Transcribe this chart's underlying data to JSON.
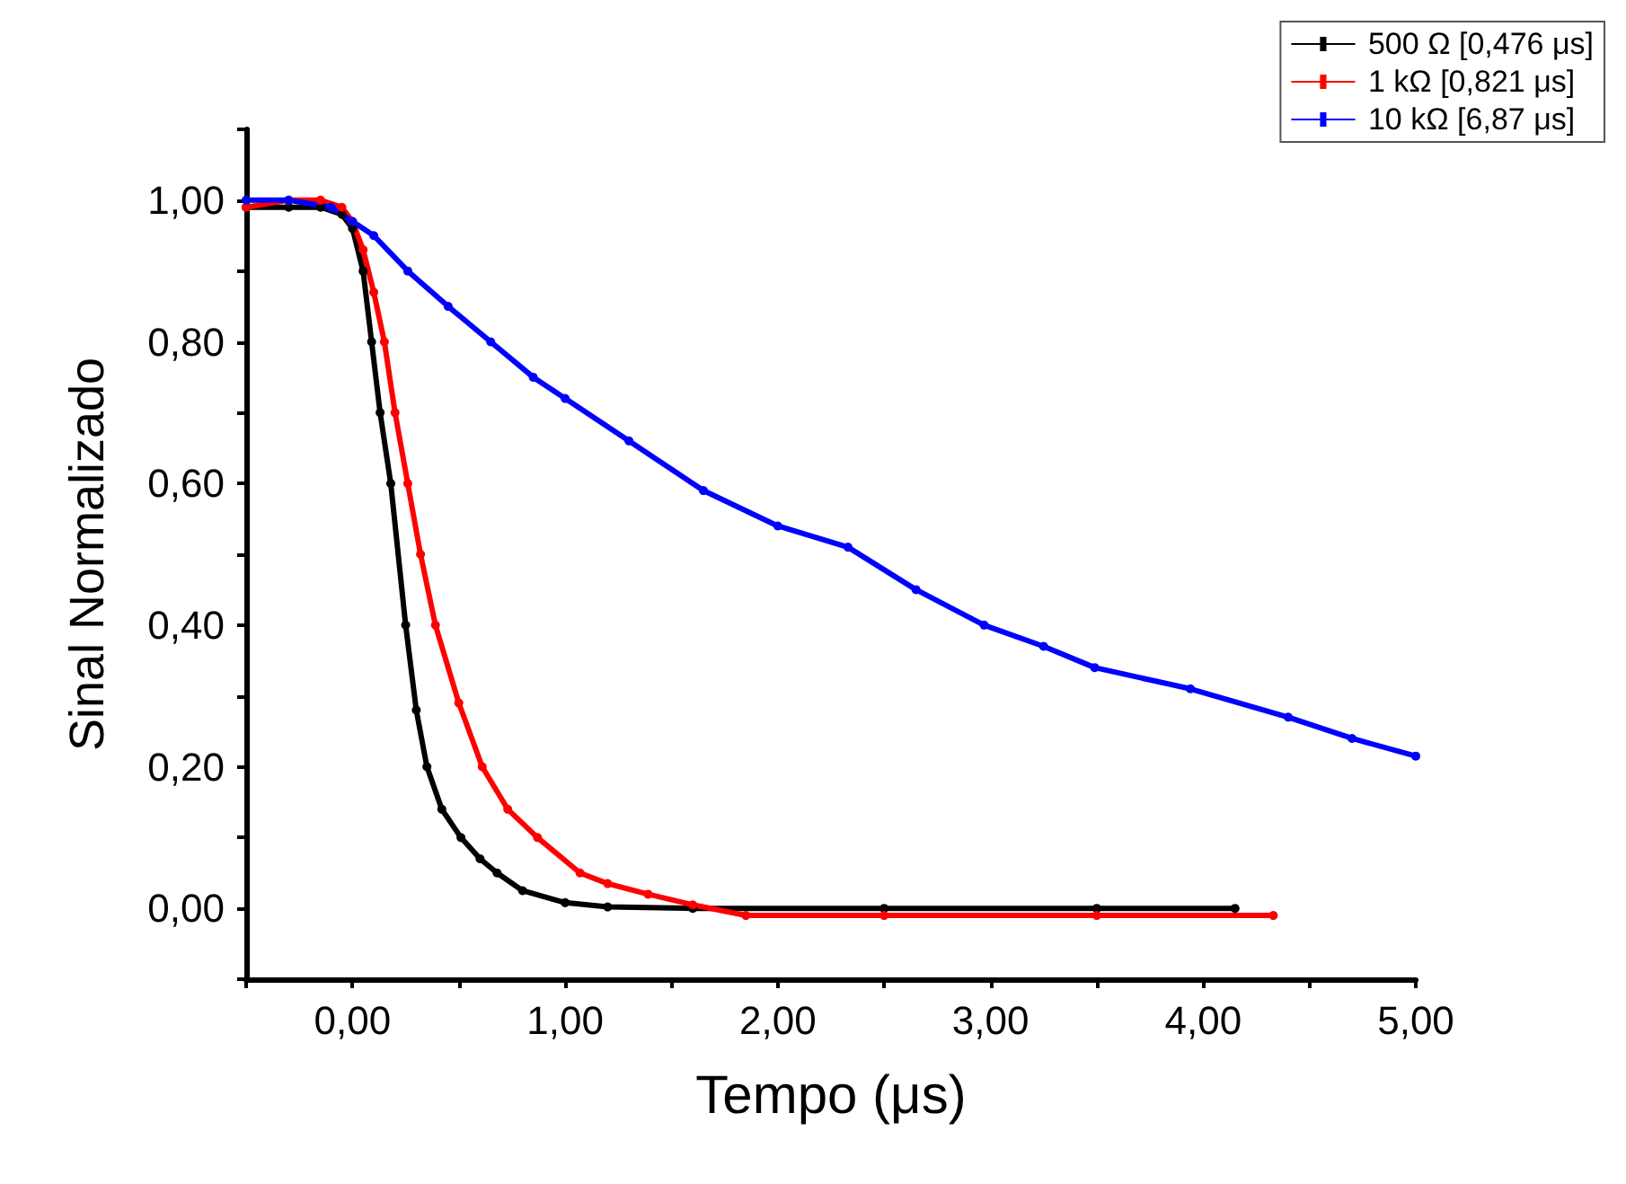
{
  "chart_data": {
    "type": "line",
    "xlabel": "Tempo (μs)",
    "ylabel": "Sinal Normalizado",
    "xlim": [
      -0.5,
      5
    ],
    "ylim": [
      -0.1,
      1.1
    ],
    "xticks": [
      {
        "value": -0.5,
        "label": null
      },
      {
        "value": 0,
        "label": "0,00"
      },
      {
        "value": 0.5,
        "label": null
      },
      {
        "value": 1,
        "label": "1,00"
      },
      {
        "value": 1.5,
        "label": null
      },
      {
        "value": 2,
        "label": "2,00"
      },
      {
        "value": 2.5,
        "label": null
      },
      {
        "value": 3,
        "label": "3,00"
      },
      {
        "value": 3.5,
        "label": null
      },
      {
        "value": 4,
        "label": "4,00"
      },
      {
        "value": 4.5,
        "label": null
      },
      {
        "value": 5,
        "label": "5,00"
      }
    ],
    "yticks": [
      {
        "value": -0.1,
        "label": null
      },
      {
        "value": 0,
        "label": "0,00"
      },
      {
        "value": 0.1,
        "label": null
      },
      {
        "value": 0.2,
        "label": "0,20"
      },
      {
        "value": 0.3,
        "label": null
      },
      {
        "value": 0.4,
        "label": "0,40"
      },
      {
        "value": 0.5,
        "label": null
      },
      {
        "value": 0.6,
        "label": "0,60"
      },
      {
        "value": 0.7,
        "label": null
      },
      {
        "value": 0.8,
        "label": "0,80"
      },
      {
        "value": 0.9,
        "label": null
      },
      {
        "value": 1,
        "label": "1,00"
      },
      {
        "value": 1.1,
        "label": null
      }
    ],
    "grid": false,
    "legend": "top right",
    "marker": "circle",
    "line_style": "solid",
    "series": [
      {
        "name": "500 Ω [0,476 μs]",
        "color": "#000000",
        "x": [
          -0.5,
          -0.3,
          -0.15,
          -0.05,
          0,
          0.05,
          0.09,
          0.13,
          0.18,
          0.25,
          0.3,
          0.35,
          0.42,
          0.51,
          0.6,
          0.68,
          0.8,
          1.0,
          1.2,
          1.6,
          2.5,
          3.5,
          4.15
        ],
        "values": [
          0.99,
          0.99,
          0.99,
          0.98,
          0.96,
          0.9,
          0.8,
          0.7,
          0.6,
          0.4,
          0.28,
          0.2,
          0.14,
          0.1,
          0.07,
          0.05,
          0.025,
          0.008,
          0.002,
          0.0,
          0.0,
          0.0,
          0.0
        ]
      },
      {
        "name": "1 kΩ [0,821 μs]",
        "color": "#ff0000",
        "x": [
          -0.5,
          -0.3,
          -0.15,
          -0.05,
          0,
          0.05,
          0.1,
          0.15,
          0.2,
          0.26,
          0.32,
          0.39,
          0.5,
          0.61,
          0.73,
          0.87,
          1.07,
          1.2,
          1.39,
          1.6,
          1.85,
          2.5,
          3.5,
          4.33
        ],
        "values": [
          0.99,
          1.0,
          1.0,
          0.99,
          0.97,
          0.93,
          0.87,
          0.8,
          0.7,
          0.6,
          0.5,
          0.4,
          0.29,
          0.2,
          0.14,
          0.1,
          0.05,
          0.035,
          0.02,
          0.005,
          -0.01,
          -0.01,
          -0.01,
          -0.01
        ]
      },
      {
        "name": "10 kΩ [6,87 μs]",
        "color": "#0000ff",
        "x": [
          -0.5,
          -0.3,
          -0.1,
          0,
          0.1,
          0.26,
          0.45,
          0.65,
          0.85,
          1.0,
          1.3,
          1.65,
          2.0,
          2.33,
          2.65,
          2.97,
          3.25,
          3.49,
          3.94,
          4.4,
          4.7,
          5.0
        ],
        "values": [
          1.0,
          1.0,
          0.99,
          0.97,
          0.95,
          0.9,
          0.85,
          0.8,
          0.75,
          0.72,
          0.66,
          0.59,
          0.54,
          0.51,
          0.45,
          0.4,
          0.37,
          0.34,
          0.31,
          0.27,
          0.24,
          0.215
        ]
      }
    ]
  }
}
